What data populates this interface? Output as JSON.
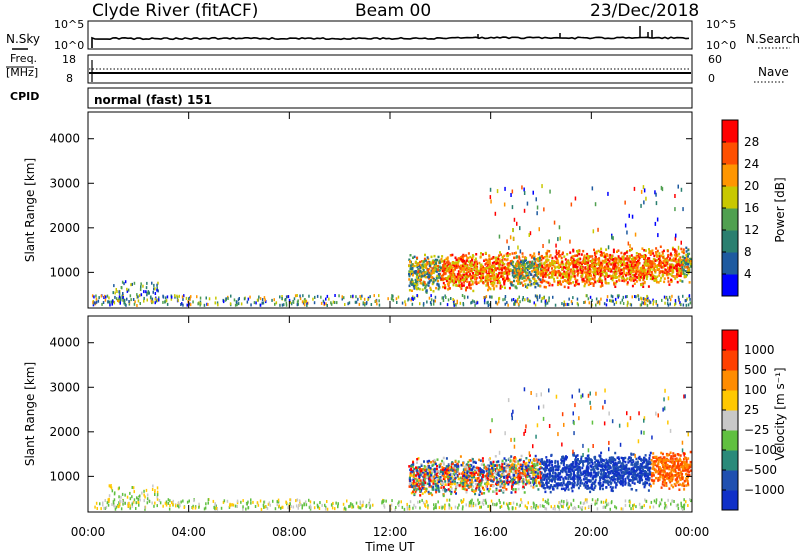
{
  "header": {
    "station": "Clyde River (fitACF)",
    "beam": "Beam 00",
    "date": "23/Dec/2018"
  },
  "top_panels": {
    "nsky_label": "N.Sky",
    "nsearch_label": "N.Search",
    "nsky_ticks": [
      "10^5",
      "10^0"
    ],
    "nsearch_ticks": [
      "10^5",
      "10^0"
    ],
    "freq_label_1": "Freq.",
    "freq_label_2": "[MHz]",
    "freq_ticks": [
      "18",
      "8"
    ],
    "nave_label": "Nave",
    "nave_ticks": [
      "60",
      "0"
    ],
    "cpid_label": "CPID",
    "cpid_value": "normal (fast) 151"
  },
  "chart_data": [
    {
      "type": "heatmap",
      "name": "power",
      "ylabel": "Slant Range [km]",
      "xlabel": "Time UT",
      "x_ticks": [
        "00:00",
        "04:00",
        "08:00",
        "12:00",
        "16:00",
        "20:00",
        "00:00"
      ],
      "y_ticks": [
        "1000",
        "2000",
        "3000",
        "4000"
      ],
      "ylim": [
        200,
        4600
      ],
      "colorbar_label": "Power [dB]",
      "colorbar_ticks": [
        "28",
        "24",
        "20",
        "16",
        "12",
        "8",
        "4"
      ],
      "colors": [
        "#0000ff",
        "#1e5aa0",
        "#2a7f70",
        "#50a050",
        "#c8c800",
        "#ff9600",
        "#ff5000",
        "#ff0000"
      ]
    },
    {
      "type": "heatmap",
      "name": "velocity",
      "ylabel": "Slant Range [km]",
      "xlabel": "Time UT",
      "x_ticks": [
        "00:00",
        "04:00",
        "08:00",
        "12:00",
        "16:00",
        "20:00",
        "00:00"
      ],
      "y_ticks": [
        "1000",
        "2000",
        "3000",
        "4000"
      ],
      "ylim": [
        200,
        4600
      ],
      "colorbar_label": "Velocity [m s⁻¹]",
      "colorbar_ticks": [
        "1000",
        "500",
        "100",
        "25",
        "−25",
        "−100",
        "−500",
        "−1000"
      ],
      "colors": [
        "#1030c8",
        "#2050b0",
        "#2a8a7a",
        "#60c040",
        "#c8c8c8",
        "#ffc800",
        "#ff8c00",
        "#ff4000",
        "#ff0000"
      ]
    }
  ],
  "x_axis_title": "Time UT"
}
